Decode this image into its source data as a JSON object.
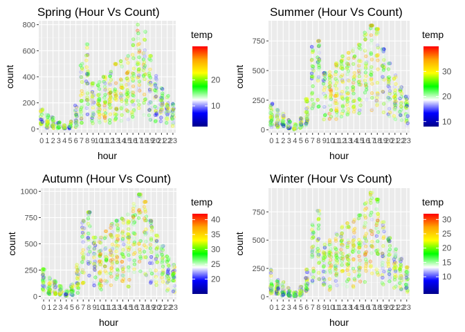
{
  "chart_data": [
    {
      "type": "scatter",
      "title": "Spring (Hour Vs Count)",
      "xlabel": "hour",
      "ylabel": "count",
      "categories": [
        "0",
        "1",
        "2",
        "3",
        "4",
        "5",
        "6",
        "7",
        "8",
        "9",
        "10",
        "11",
        "12",
        "13",
        "14",
        "15",
        "16",
        "17",
        "18",
        "19",
        "20",
        "21",
        "22",
        "23"
      ],
      "ylim": [
        -30,
        830
      ],
      "yticks": [
        0,
        200,
        400,
        600,
        800
      ],
      "grid": true,
      "color_legend": {
        "title": "temp",
        "range": [
          2,
          33
        ],
        "ticks": [
          10,
          20
        ],
        "colors": [
          "#00008b",
          "#0000ff",
          "#ffffff",
          "#00ff00",
          "#ffff00",
          "#ffa500",
          "#ff0000"
        ]
      },
      "hourly_median": [
        45,
        28,
        18,
        9,
        5,
        10,
        40,
        140,
        260,
        160,
        120,
        140,
        170,
        170,
        165,
        170,
        240,
        360,
        330,
        240,
        175,
        140,
        100,
        65
      ],
      "hourly_max": [
        150,
        110,
        90,
        50,
        30,
        60,
        180,
        500,
        650,
        350,
        360,
        400,
        450,
        500,
        520,
        560,
        700,
        800,
        750,
        560,
        420,
        330,
        260,
        200
      ]
    },
    {
      "type": "scatter",
      "title": "Summer (Hour Vs Count)",
      "xlabel": "hour",
      "ylabel": "count",
      "categories": [
        "0",
        "1",
        "2",
        "3",
        "4",
        "5",
        "6",
        "7",
        "8",
        "9",
        "10",
        "11",
        "12",
        "13",
        "14",
        "15",
        "16",
        "17",
        "18",
        "19",
        "20",
        "21",
        "22",
        "23"
      ],
      "ylim": [
        -25,
        920
      ],
      "yticks": [
        0,
        250,
        500,
        750
      ],
      "grid": true,
      "color_legend": {
        "title": "temp",
        "range": [
          8,
          40
        ],
        "ticks": [
          10,
          20,
          30
        ],
        "colors": [
          "#00008b",
          "#0000ff",
          "#ffffff",
          "#00ff00",
          "#ffff00",
          "#ffa500",
          "#ff0000"
        ]
      },
      "hourly_median": [
        70,
        45,
        30,
        15,
        8,
        25,
        100,
        330,
        480,
        270,
        230,
        260,
        310,
        310,
        300,
        310,
        400,
        600,
        570,
        420,
        320,
        260,
        200,
        130
      ],
      "hourly_max": [
        220,
        170,
        140,
        90,
        50,
        100,
        260,
        700,
        750,
        480,
        500,
        560,
        620,
        650,
        680,
        720,
        820,
        880,
        850,
        680,
        560,
        460,
        360,
        280
      ]
    },
    {
      "type": "scatter",
      "title": "Autumn (Hour Vs Count)",
      "xlabel": "hour",
      "ylabel": "count",
      "categories": [
        "0",
        "1",
        "2",
        "3",
        "4",
        "5",
        "6",
        "7",
        "8",
        "9",
        "10",
        "11",
        "12",
        "13",
        "14",
        "15",
        "16",
        "17",
        "18",
        "19",
        "20",
        "21",
        "22",
        "23"
      ],
      "ylim": [
        -30,
        1030
      ],
      "yticks": [
        0,
        250,
        500,
        750,
        1000
      ],
      "grid": true,
      "color_legend": {
        "title": "temp",
        "range": [
          15,
          42
        ],
        "ticks": [
          20,
          25,
          30,
          35,
          40
        ],
        "colors": [
          "#00008b",
          "#0000ff",
          "#ffffff",
          "#00ff00",
          "#ffff00",
          "#ffa500",
          "#ff0000"
        ]
      },
      "hourly_median": [
        90,
        55,
        35,
        18,
        10,
        30,
        120,
        370,
        520,
        300,
        250,
        290,
        340,
        340,
        320,
        340,
        440,
        650,
        620,
        450,
        340,
        280,
        210,
        140
      ],
      "hourly_max": [
        260,
        180,
        150,
        100,
        60,
        120,
        300,
        720,
        800,
        560,
        560,
        620,
        700,
        720,
        740,
        780,
        880,
        970,
        900,
        720,
        580,
        480,
        380,
        300
      ]
    },
    {
      "type": "scatter",
      "title": "Winter (Hour Vs Count)",
      "xlabel": "hour",
      "ylabel": "count",
      "categories": [
        "0",
        "1",
        "2",
        "3",
        "4",
        "5",
        "6",
        "7",
        "8",
        "9",
        "10",
        "11",
        "12",
        "13",
        "14",
        "15",
        "16",
        "17",
        "18",
        "19",
        "20",
        "21",
        "22",
        "23"
      ],
      "ylim": [
        -25,
        960
      ],
      "yticks": [
        0,
        250,
        500,
        750
      ],
      "grid": true,
      "color_legend": {
        "title": "temp",
        "range": [
          4,
          32
        ],
        "ticks": [
          10,
          15,
          20,
          25,
          30
        ],
        "colors": [
          "#00008b",
          "#0000ff",
          "#ffffff",
          "#00ff00",
          "#ffff00",
          "#ffa500",
          "#ff0000"
        ]
      },
      "hourly_median": [
        60,
        35,
        22,
        12,
        6,
        20,
        90,
        300,
        440,
        250,
        210,
        240,
        280,
        290,
        280,
        290,
        380,
        560,
        530,
        380,
        290,
        230,
        170,
        110
      ],
      "hourly_max": [
        250,
        150,
        130,
        80,
        40,
        90,
        240,
        650,
        760,
        480,
        500,
        560,
        620,
        650,
        680,
        720,
        830,
        920,
        860,
        660,
        520,
        420,
        340,
        260
      ]
    }
  ]
}
